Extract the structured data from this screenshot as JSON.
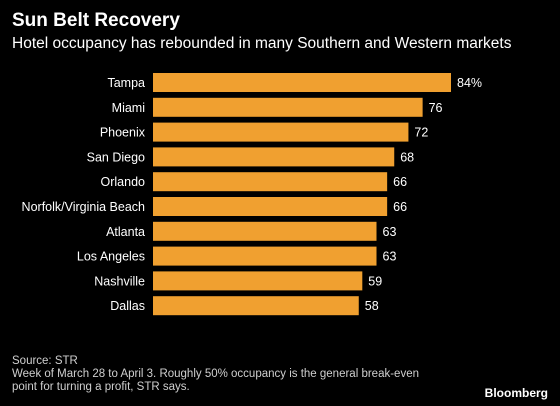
{
  "header": {
    "title": "Sun Belt Recovery",
    "subtitle": "Hotel occupancy has rebounded in many Southern and Western markets"
  },
  "footer": {
    "source": "Source: STR",
    "note_line1": "Week of March 28 to April 3. Roughly 50% occupancy is the general break-even",
    "note_line2": "point for turning a profit, STR says.",
    "brand": "Bloomberg"
  },
  "colors": {
    "background": "#000000",
    "bar": "#f0a030",
    "text": "#ffffff"
  },
  "chart_data": {
    "type": "bar",
    "orientation": "horizontal",
    "categories": [
      "Tampa",
      "Miami",
      "Phoenix",
      "San Diego",
      "Orlando",
      "Norfolk/Virginia Beach",
      "Atlanta",
      "Los Angeles",
      "Nashville",
      "Dallas"
    ],
    "values": [
      84,
      76,
      72,
      68,
      66,
      66,
      63,
      63,
      59,
      58
    ],
    "value_labels": [
      "84%",
      "76",
      "72",
      "68",
      "66",
      "66",
      "63",
      "63",
      "59",
      "58"
    ],
    "xlim": [
      0,
      84
    ],
    "grid": false,
    "legend": "none"
  }
}
